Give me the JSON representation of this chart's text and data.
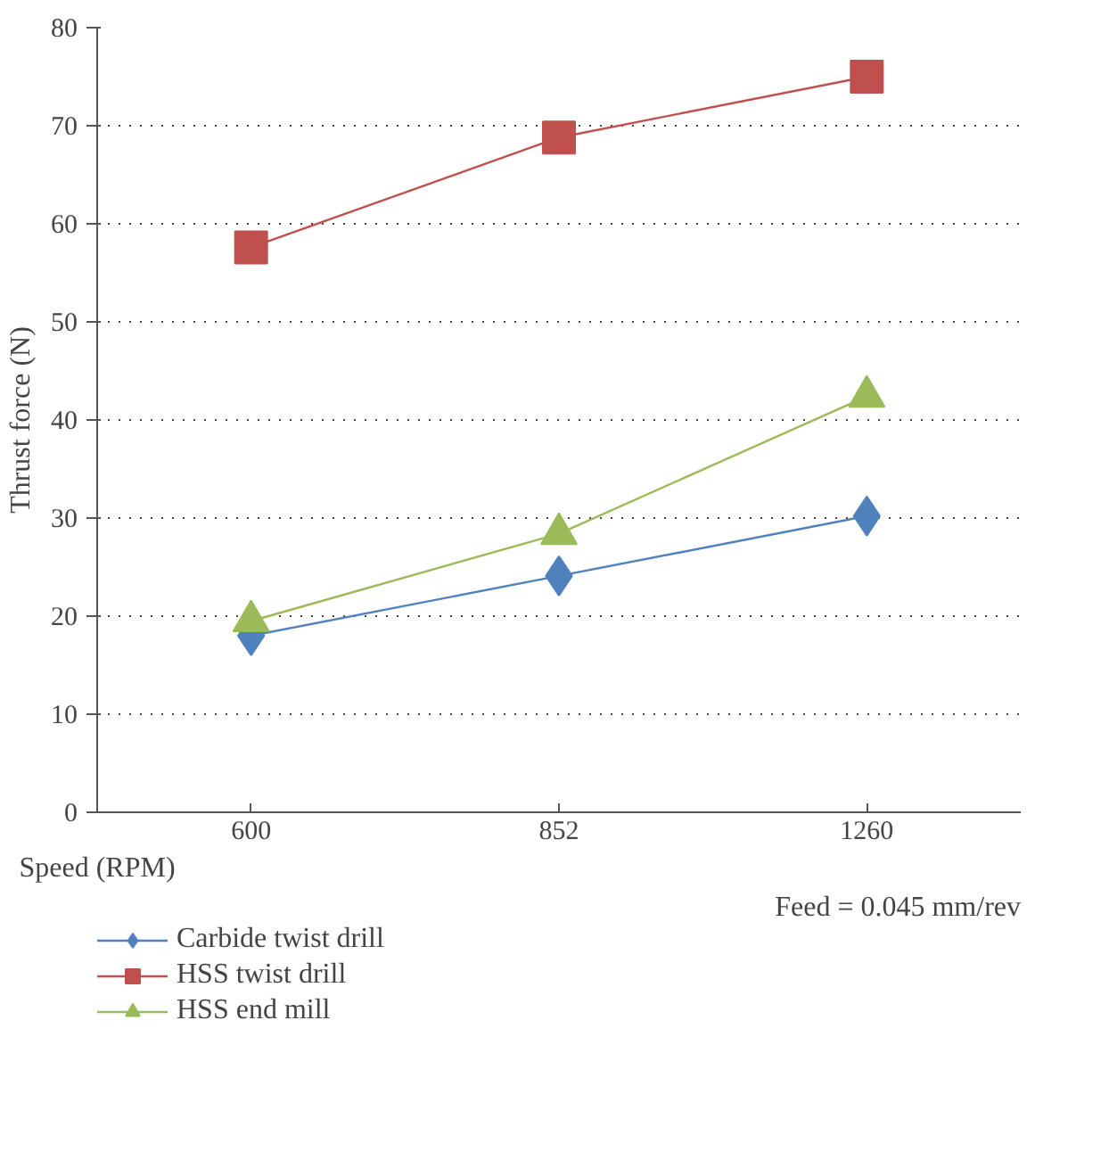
{
  "chart_data": {
    "type": "line",
    "xlabel": "Speed (RPM)",
    "ylabel": "Thrust force (N)",
    "categories": [
      "600",
      "852",
      "1260"
    ],
    "series": [
      {
        "name": "Carbide twist drill",
        "color": "#4f81bd",
        "marker": "diamond",
        "values": [
          18,
          24.1,
          30.2
        ]
      },
      {
        "name": "HSS twist drill",
        "color": "#c0504d",
        "marker": "square",
        "values": [
          57.6,
          68.8,
          75
        ]
      },
      {
        "name": "HSS end mill",
        "color": "#9bbb59",
        "marker": "triangle",
        "values": [
          19.5,
          28.4,
          42.4
        ]
      }
    ],
    "ylim": [
      0,
      80
    ],
    "yticks": [
      0,
      10,
      20,
      30,
      40,
      50,
      60,
      70,
      80
    ],
    "grid": "y",
    "legend": "bottom",
    "line_style": "solid",
    "annotations": [
      "Feed = 0.045 mm/rev"
    ]
  }
}
